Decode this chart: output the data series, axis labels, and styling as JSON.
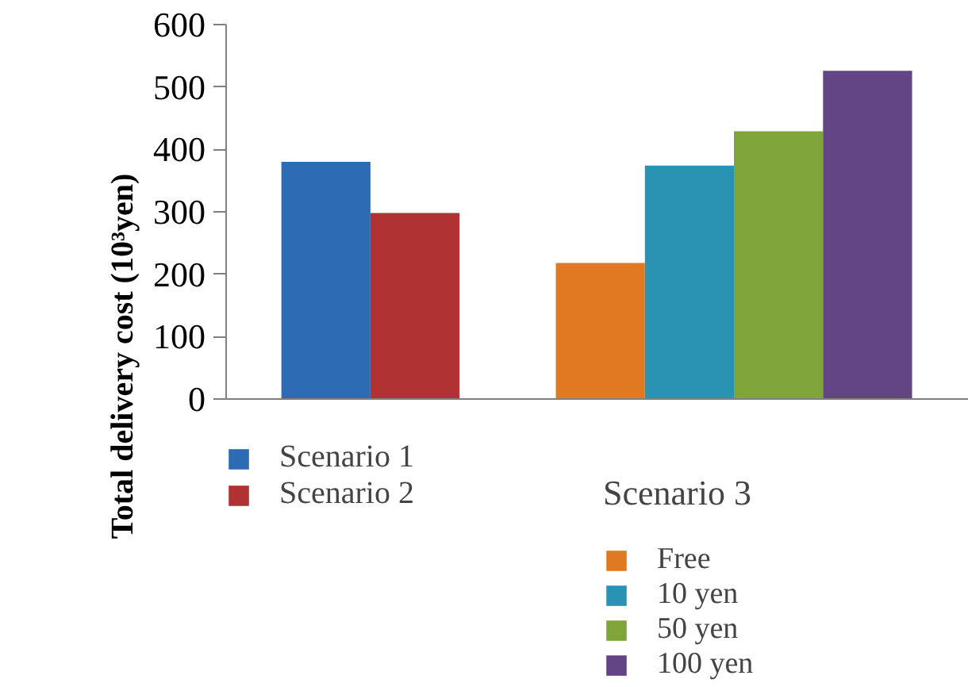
{
  "chart_data": {
    "type": "bar",
    "ylabel": "Total delivery cost (10³yen)",
    "categories": [
      null,
      null
    ],
    "series": [
      {
        "name": "Scenario 1",
        "color": "#2e6bb5",
        "values": [
          380,
          null
        ]
      },
      {
        "name": "Scenario 2",
        "color": "#b03232",
        "values": [
          298,
          null
        ]
      },
      {
        "name": "Free",
        "color": "#e07a22",
        "values": [
          null,
          218
        ]
      },
      {
        "name": "10 yen",
        "color": "#2a93b3",
        "values": [
          null,
          374
        ]
      },
      {
        "name": "50 yen",
        "color": "#7fa43a",
        "values": [
          null,
          429
        ]
      },
      {
        "name": "100 yen",
        "color": "#634485",
        "values": [
          null,
          526
        ]
      }
    ],
    "legend_title": "Scenario 3",
    "legend": "bottom",
    "grid": false,
    "ylim": [
      0,
      600
    ],
    "yticks": [
      0,
      100,
      200,
      300,
      400,
      500,
      600
    ]
  }
}
